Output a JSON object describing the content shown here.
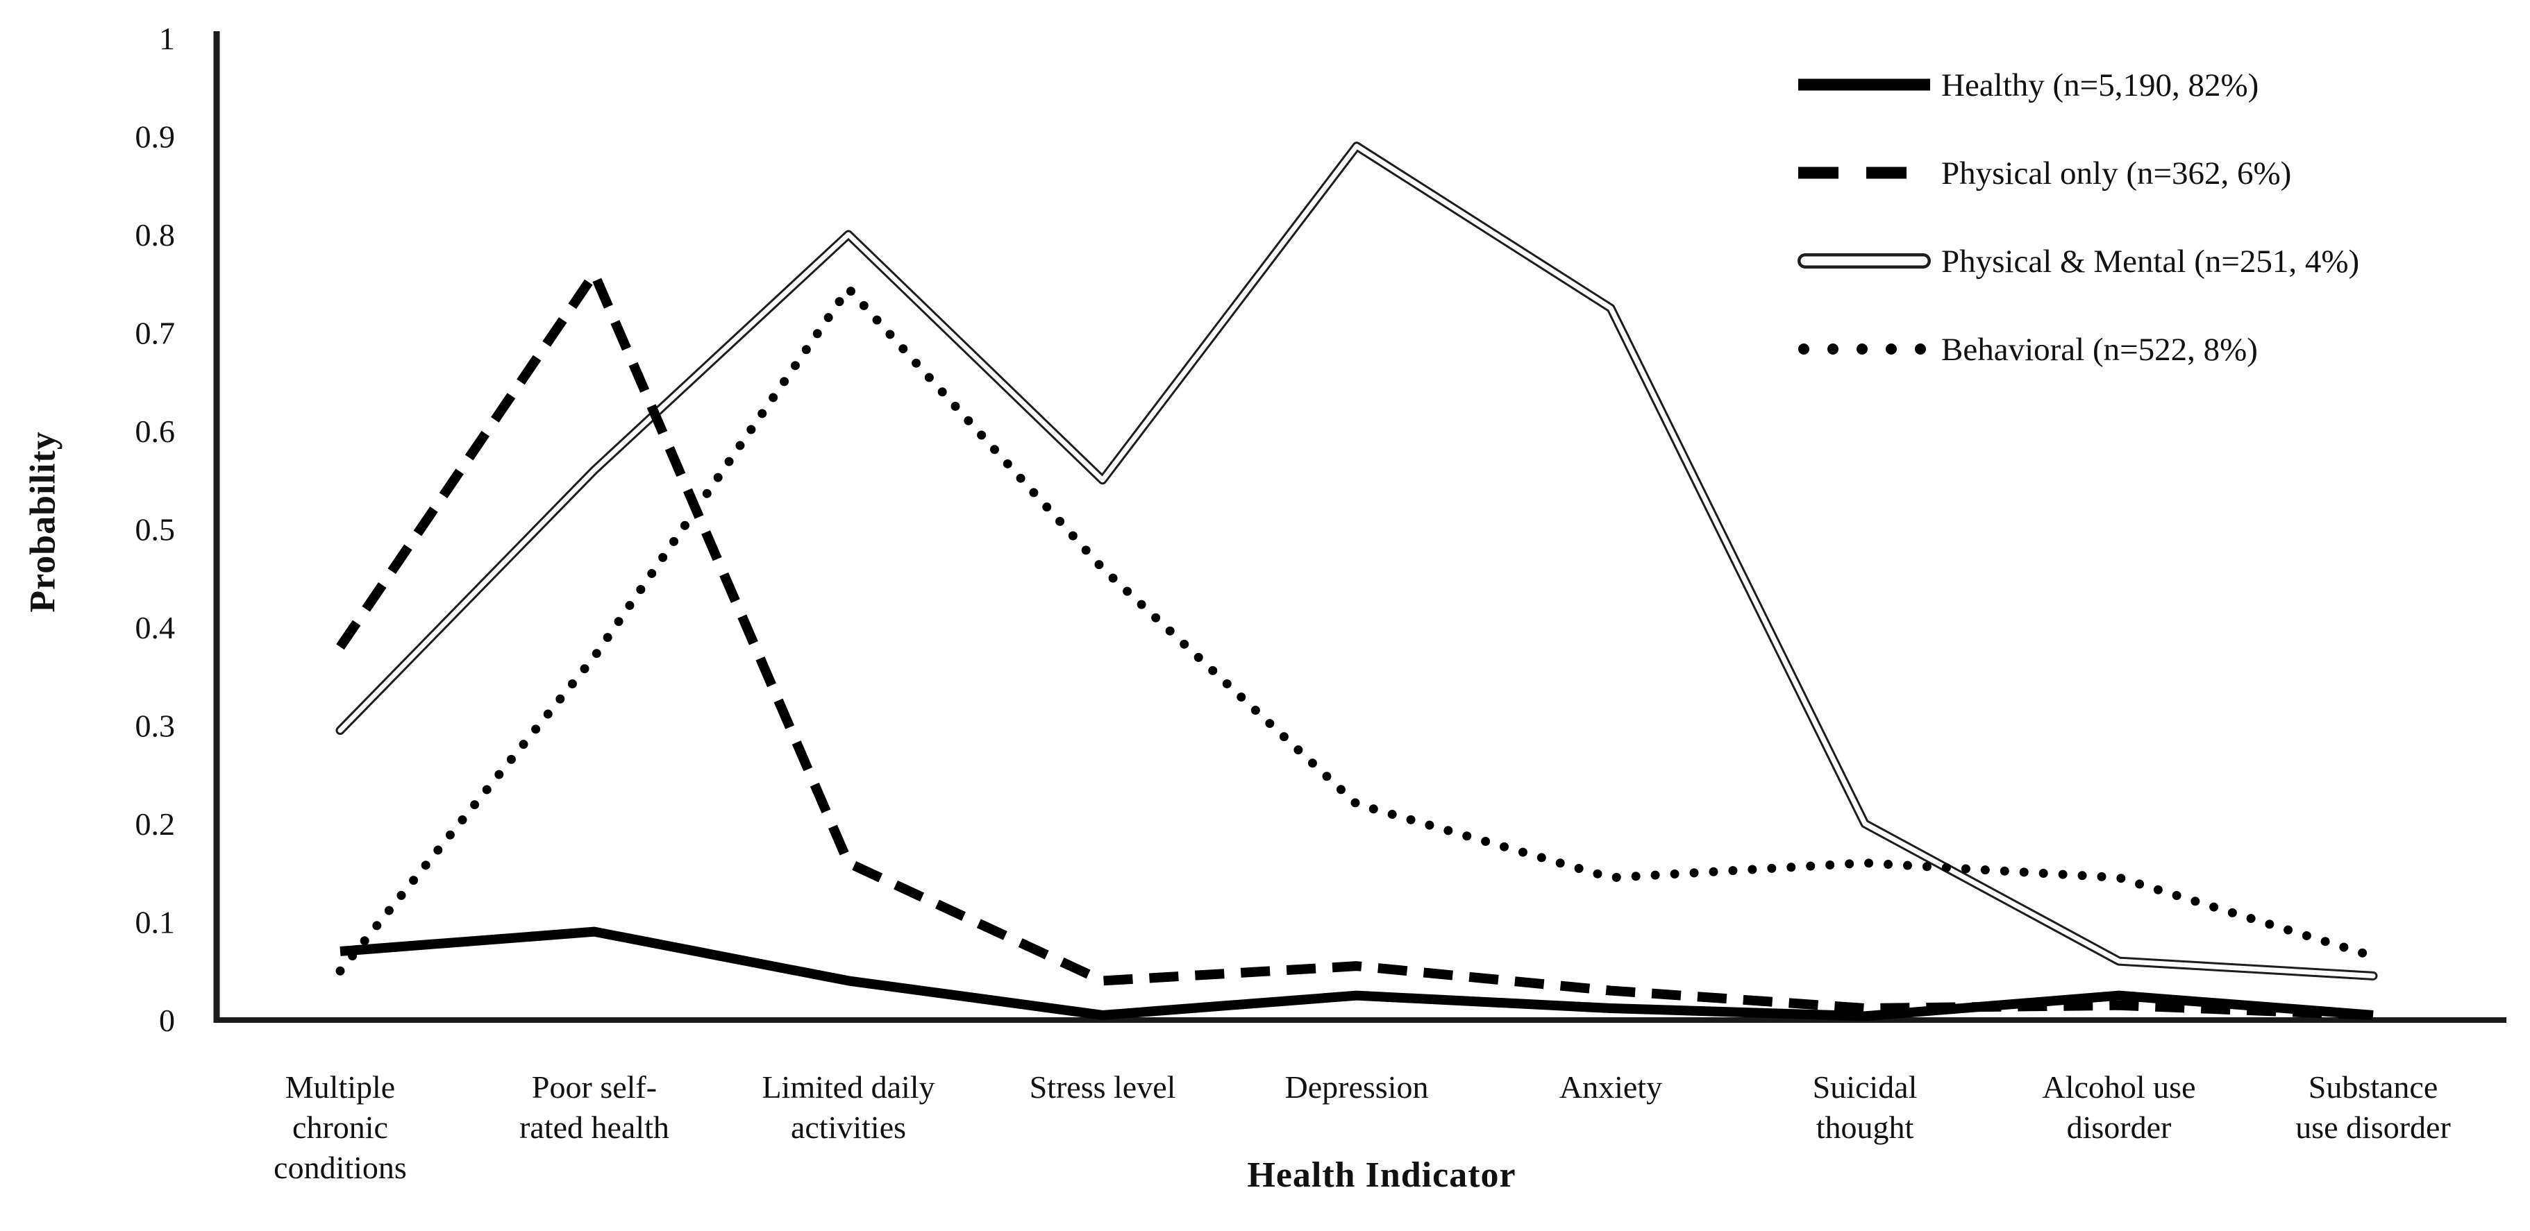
{
  "chart_data": {
    "type": "line",
    "title": "",
    "xlabel": "Health Indicator",
    "ylabel": "Probability",
    "ylim": [
      0,
      1
    ],
    "grid": false,
    "legend_position": "top-right",
    "background": "#ffffff",
    "axis_color": "#1a1a1a",
    "line_color": "#000000",
    "yticks": [
      {
        "label": "1",
        "value": 1.0
      },
      {
        "label": "0.9",
        "value": 0.9
      },
      {
        "label": "0.8",
        "value": 0.8
      },
      {
        "label": "0.7",
        "value": 0.7
      },
      {
        "label": "0.6",
        "value": 0.6
      },
      {
        "label": "0.5",
        "value": 0.5
      },
      {
        "label": "0.4",
        "value": 0.4
      },
      {
        "label": "0.3",
        "value": 0.3
      },
      {
        "label": "0.2",
        "value": 0.2
      },
      {
        "label": "0.1",
        "value": 0.1
      },
      {
        "label": "0",
        "value": 0.0
      }
    ],
    "categories": [
      "Multiple chronic conditions",
      "Poor self-rated health",
      "Limited daily activities",
      "Stress level",
      "Depression",
      "Anxiety",
      "Suicidal thought",
      "Alcohol use disorder",
      "Substance use disorder"
    ],
    "category_label_lines": [
      [
        "Multiple",
        "chronic",
        "conditions"
      ],
      [
        "Poor self-",
        "rated health"
      ],
      [
        "Limited daily",
        "activities"
      ],
      [
        "Stress level"
      ],
      [
        "Depression"
      ],
      [
        "Anxiety"
      ],
      [
        "Suicidal",
        "thought"
      ],
      [
        "Alcohol use",
        "disorder"
      ],
      [
        "Substance",
        "use disorder"
      ]
    ],
    "series": [
      {
        "name": "Healthy",
        "legend": "Healthy (n=5,190, 82%)",
        "style": "solid-thick",
        "z": 2,
        "values": [
          0.07,
          0.09,
          0.04,
          0.005,
          0.025,
          0.012,
          0.004,
          0.025,
          0.005
        ]
      },
      {
        "name": "Physical only",
        "legend": "Physical only (n=362, 6%)",
        "style": "dashed",
        "z": 3,
        "values": [
          0.38,
          0.76,
          0.16,
          0.04,
          0.055,
          0.03,
          0.012,
          0.015,
          0.005
        ]
      },
      {
        "name": "Physical & Mental",
        "legend": "Physical & Mental  (n=251, 4%)",
        "style": "double-outline",
        "z": 1,
        "values": [
          0.295,
          0.56,
          0.8,
          0.55,
          0.89,
          0.725,
          0.2,
          0.06,
          0.045
        ]
      },
      {
        "name": "Behavioral",
        "legend": "Behavioral (n=522, 8%)",
        "style": "dotted",
        "z": 4,
        "values": [
          0.05,
          0.37,
          0.745,
          0.46,
          0.22,
          0.145,
          0.16,
          0.145,
          0.065
        ]
      }
    ]
  }
}
